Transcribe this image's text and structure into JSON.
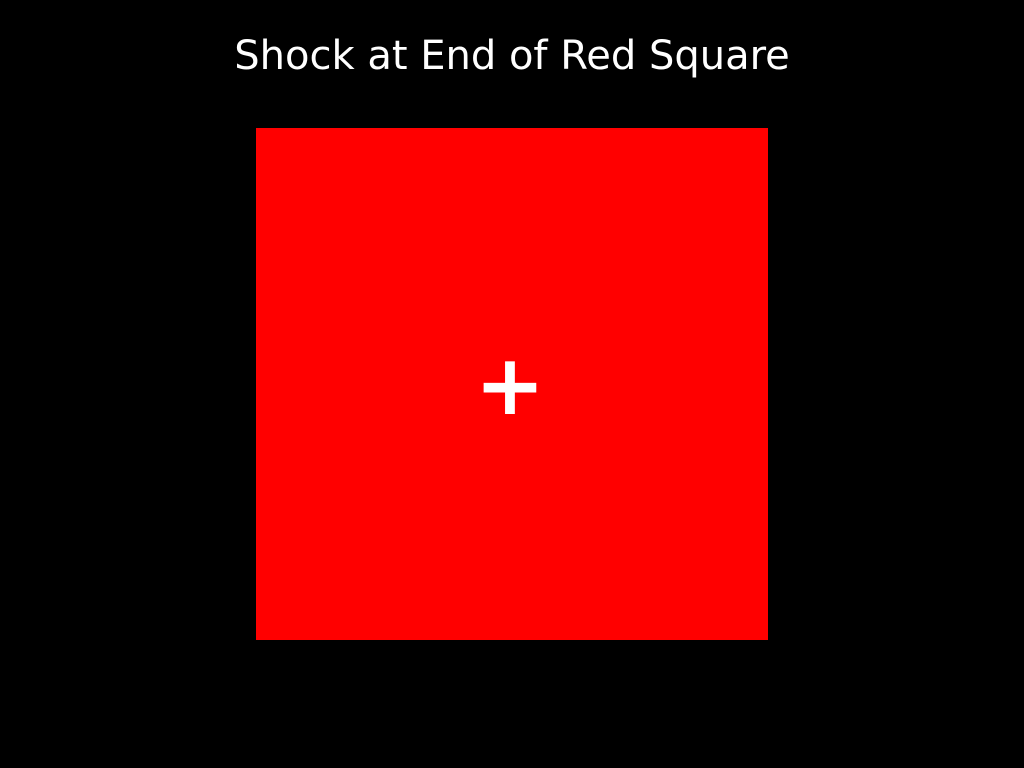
{
  "slide": {
    "title": "Shock at End of Red Square",
    "background_color": "#000000",
    "square": {
      "color": "#ff0000",
      "symbol": "+",
      "symbol_color": "#ffffff"
    }
  }
}
